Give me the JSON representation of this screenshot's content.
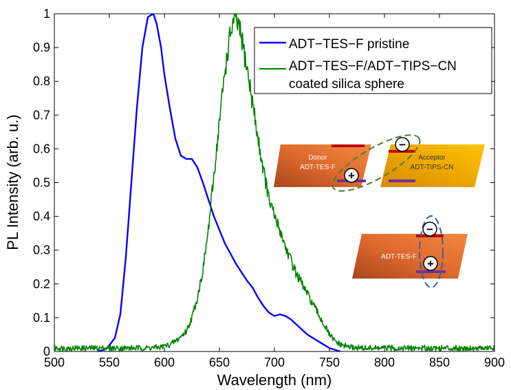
{
  "chart_data": {
    "type": "line",
    "xlabel": "Wavelength (nm)",
    "ylabel": "PL Intensity (arb. u.)",
    "xlim": [
      500,
      900
    ],
    "ylim": [
      0,
      1
    ],
    "xticks": [
      "500",
      "550",
      "600",
      "650",
      "700",
      "750",
      "800",
      "850",
      "900"
    ],
    "yticks": [
      "0",
      "0.1",
      "0.2",
      "0.3",
      "0.4",
      "0.5",
      "0.6",
      "0.7",
      "0.8",
      "0.9",
      "1"
    ],
    "grid": false,
    "legend_position": "top-right",
    "series": [
      {
        "name": "ADT−TES−F pristine",
        "color": "#0000ff",
        "x": [
          540,
          548,
          555,
          560,
          565,
          570,
          575,
          580,
          585,
          590,
          593,
          597,
          600,
          605,
          610,
          615,
          620,
          625,
          630,
          635,
          640,
          645,
          650,
          655,
          660,
          665,
          670,
          675,
          680,
          685,
          690,
          695,
          700,
          705,
          710,
          715,
          720,
          725,
          730,
          735,
          740,
          745,
          750,
          755,
          760
        ],
        "y": [
          0.0,
          0.01,
          0.04,
          0.11,
          0.28,
          0.5,
          0.72,
          0.9,
          0.99,
          1.0,
          0.97,
          0.9,
          0.82,
          0.72,
          0.63,
          0.58,
          0.57,
          0.57,
          0.545,
          0.5,
          0.45,
          0.4,
          0.36,
          0.32,
          0.29,
          0.26,
          0.235,
          0.21,
          0.19,
          0.16,
          0.135,
          0.115,
          0.105,
          0.11,
          0.105,
          0.095,
          0.08,
          0.065,
          0.05,
          0.04,
          0.03,
          0.02,
          0.01,
          0.005,
          0.0
        ]
      },
      {
        "name": "ADT−TES−F/ADT−TIPS−CN coated silica sphere",
        "color": "#008000",
        "x": [
          500,
          520,
          540,
          560,
          580,
          595,
          605,
          612,
          620,
          625,
          630,
          635,
          640,
          645,
          650,
          655,
          660,
          663,
          666,
          670,
          675,
          680,
          685,
          690,
          695,
          700,
          705,
          710,
          715,
          720,
          725,
          730,
          735,
          740,
          745,
          750,
          755,
          760,
          770,
          780,
          800,
          850,
          900
        ],
        "y": [
          0.01,
          0.01,
          0.01,
          0.01,
          0.01,
          0.012,
          0.02,
          0.035,
          0.06,
          0.1,
          0.16,
          0.24,
          0.36,
          0.52,
          0.68,
          0.83,
          0.94,
          0.98,
          0.975,
          0.93,
          0.84,
          0.74,
          0.63,
          0.54,
          0.45,
          0.4,
          0.36,
          0.31,
          0.27,
          0.23,
          0.2,
          0.17,
          0.14,
          0.11,
          0.08,
          0.05,
          0.03,
          0.02,
          0.012,
          0.01,
          0.01,
          0.01,
          0.01
        ]
      }
    ],
    "legend": [
      {
        "line1": "ADT−TES−F pristine",
        "line2": ""
      },
      {
        "line1": "ADT−TES−F/ADT−TIPS−CN",
        "line2": "coated silica sphere"
      }
    ],
    "inset": {
      "top": {
        "donor_title": "Donor",
        "donor_sub": "ADT-TES-F",
        "acceptor_title": "Acceptor",
        "acceptor_sub": "ADT-TIPS-CN",
        "minus": "−",
        "plus": "+"
      },
      "bottom": {
        "label": "ADT-TES-F",
        "minus": "−",
        "plus": "+"
      },
      "colors": {
        "donor": "#e06a2e",
        "acceptor": "#f2b000",
        "lumo": "#c00000",
        "homo": "#7030a0",
        "ellipse_green": "#4f7f2a",
        "ellipse_blue": "#3a5f95"
      }
    }
  }
}
